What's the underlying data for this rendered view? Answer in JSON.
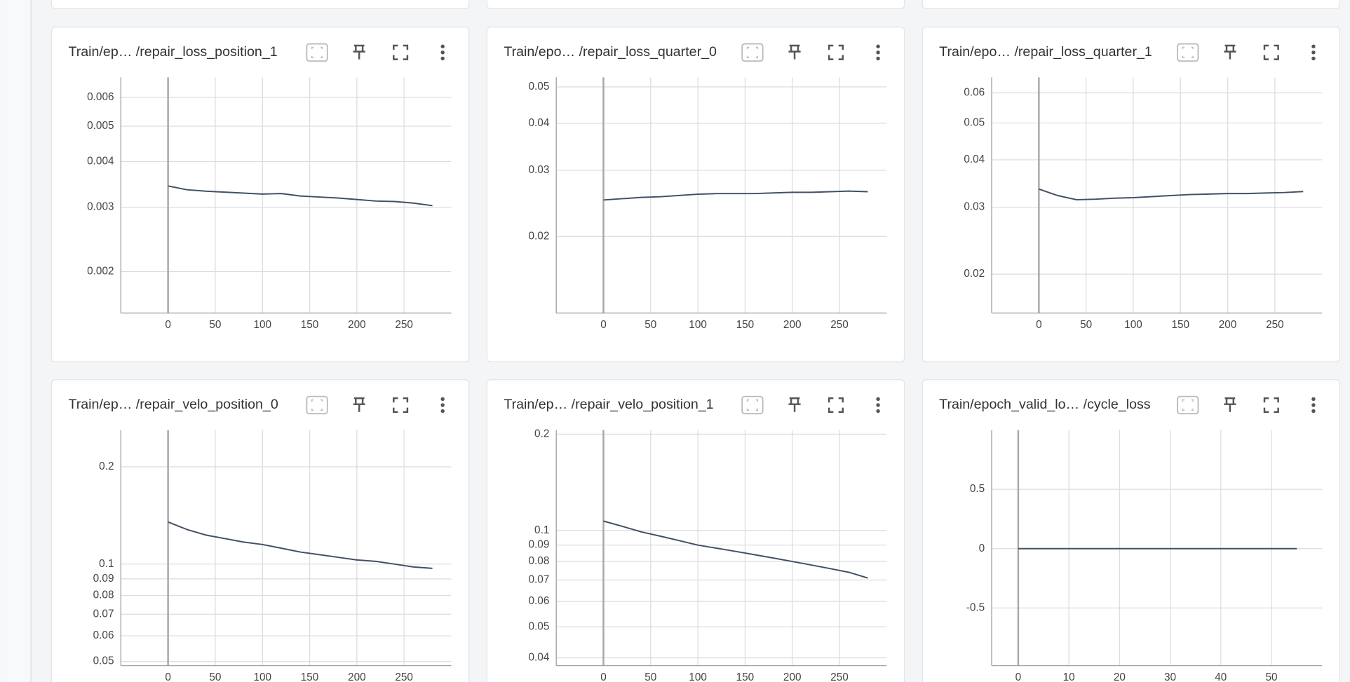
{
  "chart_data": [
    {
      "type": "line",
      "title": "Train/ep… /repair_loss_position_1",
      "yscale": "log",
      "grid": true,
      "xlim": [
        -50,
        300
      ],
      "xticks": [
        0,
        50,
        100,
        150,
        200,
        250
      ],
      "ylim": [
        0.00154,
        0.0068
      ],
      "yticks": [
        0.002,
        0.003,
        0.004,
        0.005,
        0.006
      ],
      "x": [
        0,
        20,
        40,
        60,
        80,
        100,
        120,
        140,
        160,
        180,
        200,
        220,
        240,
        260,
        280
      ],
      "series": [
        {
          "color": "#425066",
          "values": [
            0.00343,
            0.00335,
            0.00332,
            0.0033,
            0.00328,
            0.00326,
            0.00327,
            0.00322,
            0.0032,
            0.00318,
            0.00315,
            0.00312,
            0.00311,
            0.00308,
            0.00303
          ]
        }
      ]
    },
    {
      "type": "line",
      "title": "Train/epo… /repair_loss_quarter_0",
      "yscale": "log",
      "grid": true,
      "xlim": [
        -50,
        300
      ],
      "xticks": [
        0,
        50,
        100,
        150,
        200,
        250
      ],
      "ylim": [
        0.0125,
        0.053
      ],
      "yticks": [
        0.02,
        0.03,
        0.04,
        0.05
      ],
      "x": [
        0,
        20,
        40,
        60,
        80,
        100,
        120,
        140,
        160,
        180,
        200,
        220,
        240,
        260,
        280
      ],
      "series": [
        {
          "color": "#425066",
          "values": [
            0.025,
            0.0252,
            0.0254,
            0.0255,
            0.0257,
            0.0259,
            0.026,
            0.026,
            0.026,
            0.0261,
            0.0262,
            0.0262,
            0.0263,
            0.0264,
            0.0263
          ]
        }
      ]
    },
    {
      "type": "line",
      "title": "Train/epo… /repair_loss_quarter_1",
      "yscale": "log",
      "grid": true,
      "xlim": [
        -50,
        300
      ],
      "xticks": [
        0,
        50,
        100,
        150,
        200,
        250
      ],
      "ylim": [
        0.0158,
        0.0659
      ],
      "yticks": [
        0.02,
        0.03,
        0.04,
        0.05,
        0.06
      ],
      "x": [
        0,
        20,
        40,
        60,
        80,
        100,
        120,
        140,
        160,
        180,
        200,
        220,
        240,
        260,
        280
      ],
      "series": [
        {
          "color": "#425066",
          "values": [
            0.0335,
            0.0322,
            0.0314,
            0.0315,
            0.0317,
            0.0318,
            0.032,
            0.0322,
            0.0324,
            0.0325,
            0.0326,
            0.0326,
            0.0327,
            0.0328,
            0.033
          ]
        }
      ]
    },
    {
      "type": "line",
      "title": "Train/ep… /repair_velo_position_0",
      "yscale": "log",
      "grid": true,
      "xlim": [
        -50,
        300
      ],
      "xticks": [
        0,
        50,
        100,
        150,
        200,
        250
      ],
      "ylim": [
        0.0485,
        0.26
      ],
      "yticks": [
        0.05,
        0.06,
        0.07,
        0.08,
        0.09,
        0.1,
        0.2
      ],
      "x": [
        0,
        20,
        40,
        60,
        80,
        100,
        120,
        140,
        160,
        180,
        200,
        220,
        240,
        260,
        280
      ],
      "series": [
        {
          "color": "#425066",
          "values": [
            0.135,
            0.128,
            0.123,
            0.12,
            0.117,
            0.115,
            0.112,
            0.109,
            0.107,
            0.105,
            0.103,
            0.102,
            0.1,
            0.098,
            0.097
          ]
        }
      ]
    },
    {
      "type": "line",
      "title": "Train/ep… /repair_velo_position_1",
      "yscale": "log",
      "grid": true,
      "xlim": [
        -50,
        300
      ],
      "xticks": [
        0,
        50,
        100,
        150,
        200,
        250
      ],
      "ylim": [
        0.0378,
        0.206
      ],
      "yticks": [
        0.04,
        0.05,
        0.06,
        0.07,
        0.08,
        0.09,
        0.1,
        0.2
      ],
      "x": [
        0,
        20,
        40,
        60,
        80,
        100,
        120,
        140,
        160,
        180,
        200,
        220,
        240,
        260,
        280
      ],
      "series": [
        {
          "color": "#425066",
          "values": [
            0.107,
            0.103,
            0.099,
            0.096,
            0.093,
            0.09,
            0.088,
            0.086,
            0.084,
            0.082,
            0.08,
            0.078,
            0.076,
            0.074,
            0.071
          ]
        }
      ]
    },
    {
      "type": "line",
      "title": "Train/epoch_valid_lo… /cycle_loss",
      "yscale": "linear",
      "grid": true,
      "xlim": [
        -5.25,
        60
      ],
      "xticks": [
        0,
        10,
        20,
        30,
        40,
        50
      ],
      "ylim": [
        -0.986,
        1.0
      ],
      "yticks": [
        -0.5,
        0,
        0.5
      ],
      "x": [
        0,
        5,
        10,
        15,
        20,
        25,
        30,
        35,
        40,
        45,
        50,
        55
      ],
      "series": [
        {
          "color": "#425066",
          "values": [
            0,
            0,
            0,
            0,
            0,
            0,
            0,
            0,
            0,
            0,
            0,
            0
          ]
        }
      ]
    }
  ]
}
